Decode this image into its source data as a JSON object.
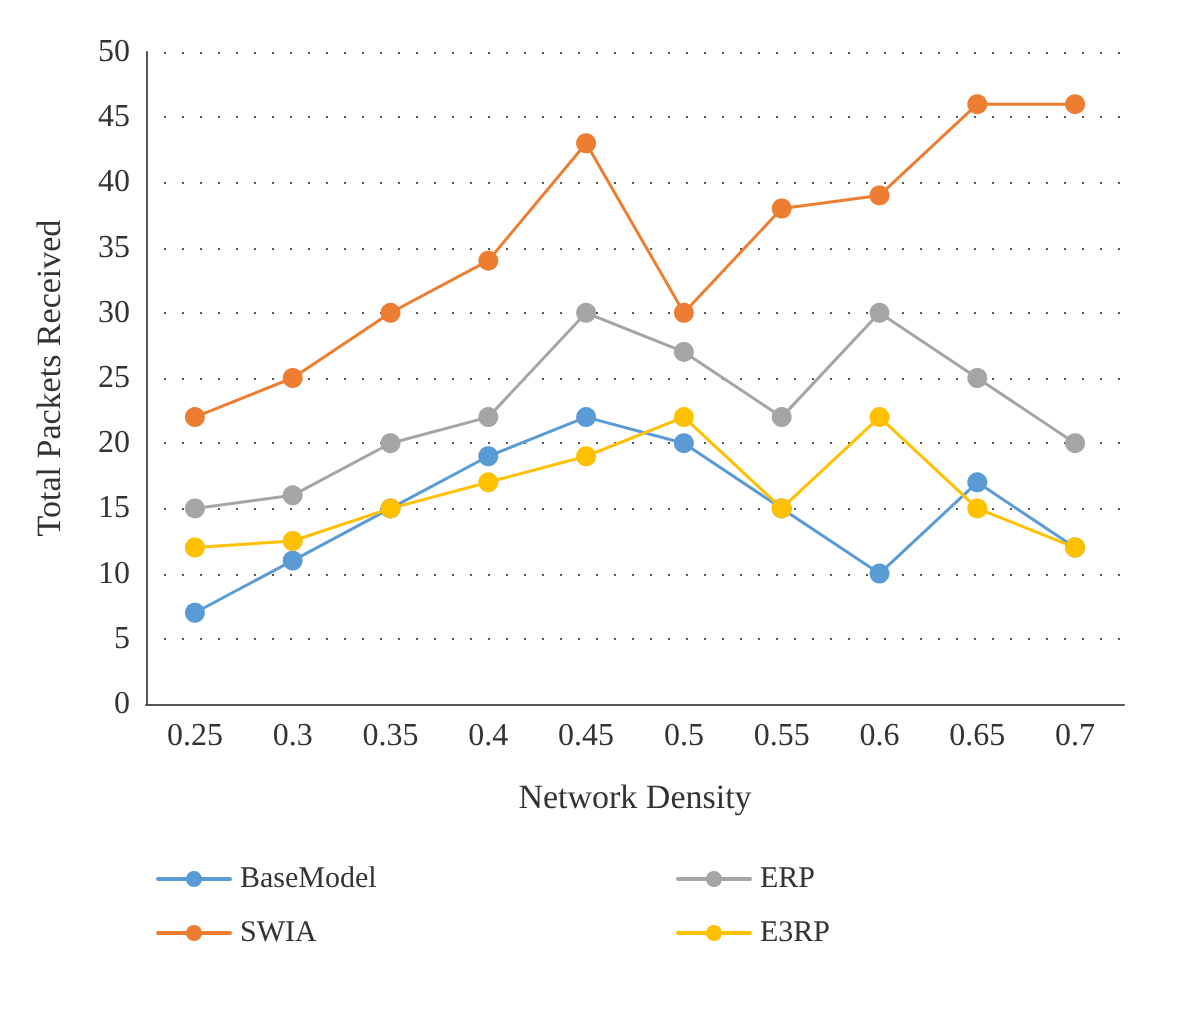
{
  "chart_data": {
    "type": "line",
    "xlabel": "Network Density",
    "ylabel": "Total Packets Received",
    "categories": [
      "0.25",
      "0.3",
      "0.35",
      "0.4",
      "0.45",
      "0.5",
      "0.55",
      "0.6",
      "0.65",
      "0.7"
    ],
    "series": [
      {
        "name": "BaseModel",
        "color": "#5b9bd5",
        "values": [
          7,
          11,
          15,
          19,
          22,
          20,
          15,
          10,
          17,
          12
        ]
      },
      {
        "name": "SWIA",
        "color": "#ed7d31",
        "values": [
          22,
          25,
          30,
          34,
          43,
          30,
          38,
          39,
          46,
          46
        ]
      },
      {
        "name": "ERP",
        "color": "#a5a5a5",
        "values": [
          15,
          16,
          20,
          22,
          30,
          27,
          22,
          30,
          25,
          20
        ]
      },
      {
        "name": "E3RP",
        "color": "#ffc000",
        "values": [
          12,
          12.5,
          15,
          17,
          19,
          22,
          15,
          22,
          15,
          12
        ]
      }
    ],
    "ylim": [
      0,
      50
    ],
    "yticks": [
      0,
      5,
      10,
      15,
      20,
      25,
      30,
      35,
      40,
      45,
      50
    ],
    "grid": "y",
    "legend": "bottom",
    "marker": "circle",
    "line_style": "solid"
  }
}
